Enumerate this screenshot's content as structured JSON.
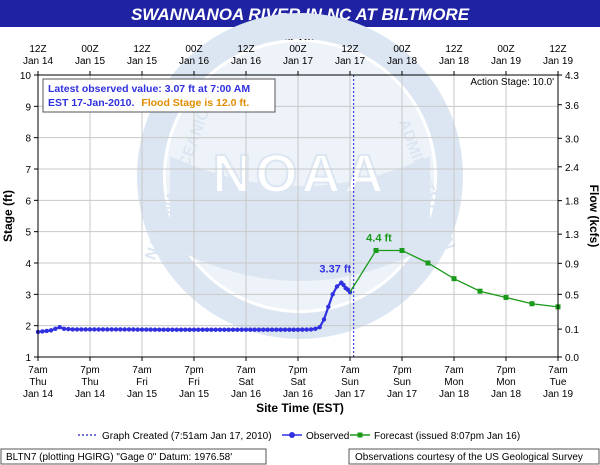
{
  "title": "SWANNANOA RIVER IN NC  AT BILTMORE",
  "top_axis": {
    "title": "Universal Time (UTC)",
    "ticks": [
      {
        "t": 0,
        "l1": "12Z",
        "l2": "Jan 14"
      },
      {
        "t": 12,
        "l1": "00Z",
        "l2": "Jan 15"
      },
      {
        "t": 24,
        "l1": "12Z",
        "l2": "Jan 15"
      },
      {
        "t": 36,
        "l1": "00Z",
        "l2": "Jan 16"
      },
      {
        "t": 48,
        "l1": "12Z",
        "l2": "Jan 16"
      },
      {
        "t": 60,
        "l1": "00Z",
        "l2": "Jan 17"
      },
      {
        "t": 72,
        "l1": "12Z",
        "l2": "Jan 17"
      },
      {
        "t": 84,
        "l1": "00Z",
        "l2": "Jan 18"
      },
      {
        "t": 96,
        "l1": "12Z",
        "l2": "Jan 18"
      },
      {
        "t": 108,
        "l1": "00Z",
        "l2": "Jan 19"
      },
      {
        "t": 120,
        "l1": "12Z",
        "l2": "Jan 19"
      }
    ]
  },
  "bottom_axis": {
    "title": "Site Time (EST)",
    "ticks": [
      {
        "t": 0,
        "l1": "7am",
        "l2": "Thu",
        "l3": "Jan 14"
      },
      {
        "t": 12,
        "l1": "7pm",
        "l2": "Thu",
        "l3": "Jan 14"
      },
      {
        "t": 24,
        "l1": "7am",
        "l2": "Fri",
        "l3": "Jan 15"
      },
      {
        "t": 36,
        "l1": "7pm",
        "l2": "Fri",
        "l3": "Jan 15"
      },
      {
        "t": 48,
        "l1": "7am",
        "l2": "Sat",
        "l3": "Jan 16"
      },
      {
        "t": 60,
        "l1": "7pm",
        "l2": "Sat",
        "l3": "Jan 16"
      },
      {
        "t": 72,
        "l1": "7am",
        "l2": "Sun",
        "l3": "Jan 17"
      },
      {
        "t": 84,
        "l1": "7pm",
        "l2": "Sun",
        "l3": "Jan 17"
      },
      {
        "t": 96,
        "l1": "7am",
        "l2": "Mon",
        "l3": "Jan 18"
      },
      {
        "t": 108,
        "l1": "7pm",
        "l2": "Mon",
        "l3": "Jan 18"
      },
      {
        "t": 120,
        "l1": "7am",
        "l2": "Tue",
        "l3": "Jan 19"
      }
    ]
  },
  "left_axis": {
    "title": "Stage (ft)",
    "min": 1,
    "max": 10,
    "ticks": [
      "1",
      "2",
      "3",
      "4",
      "5",
      "6",
      "7",
      "8",
      "9",
      "10"
    ]
  },
  "right_axis": {
    "title": "Flow (kcfs)",
    "ticks": [
      {
        "stage": 1,
        "label": "0.0"
      },
      {
        "stage": 1.89,
        "label": "0.1"
      },
      {
        "stage": 3.0,
        "label": "0.5"
      },
      {
        "stage": 3.99,
        "label": "0.9"
      },
      {
        "stage": 4.92,
        "label": "1.3"
      },
      {
        "stage": 5.99,
        "label": "1.8"
      },
      {
        "stage": 7.07,
        "label": "2.4"
      },
      {
        "stage": 7.98,
        "label": "3.0"
      },
      {
        "stage": 9.05,
        "label": "3.6"
      },
      {
        "stage": 10,
        "label": "4.3"
      }
    ]
  },
  "info_box": {
    "line1": "Latest observed value: 3.07 ft at 7:00 AM",
    "line2a": "EST 17-Jan-2010.",
    "line2b": "Flood Stage is 12.0 ft."
  },
  "action_stage": "Action Stage: 10.0'",
  "annotations": {
    "observed_peak": "3.37 ft",
    "forecast_peak": "4.4 ft"
  },
  "legend": {
    "created": "Graph Created (7:51am Jan 17, 2010)",
    "observed": "Observed",
    "forecast": "Forecast (issued 8:07pm Jan 16)"
  },
  "footer": {
    "left": "BLTN7 (plotting HGIRG)  \"Gage 0\" Datum: 1976.58'",
    "right": "Observations courtesy of the  US Geological Survey"
  },
  "watermark": {
    "text": "NOAA",
    "ring_left": "NATIONAL OCEANIC",
    "ring_right": "ADMINISTRATION"
  },
  "colors": {
    "title_bg": "#1f22a3",
    "title_fg": "#ffffff",
    "observed": "#3030e0",
    "forecast": "#1a9a1a",
    "flood_stage_text": "#e08c00",
    "graph_created_line": "#2020c0",
    "grid": "#c8c8c8",
    "watermark": "#dce6f2"
  },
  "chart_data": {
    "type": "line",
    "title": "SWANNANOA RIVER IN NC  AT BILTMORE",
    "xlabel": "Site Time (EST)",
    "xlabel_top": "Universal Time (UTC)",
    "ylabel": "Stage (ft)",
    "ylabel_right": "Flow (kcfs)",
    "ylim": [
      1,
      10
    ],
    "x_unit": "hours after 7am EST Thu Jan 14",
    "xlim": [
      0,
      120
    ],
    "graph_created_x": 72.85,
    "grid": true,
    "legend_placement": "bottom",
    "series": [
      {
        "name": "Observed",
        "x": [
          0,
          3,
          5,
          6,
          8,
          10,
          14,
          20,
          30,
          40,
          50,
          60,
          63,
          64,
          65,
          66,
          67,
          68,
          69,
          70,
          70.5,
          71,
          71.5,
          72
        ],
        "values": [
          1.8,
          1.85,
          1.95,
          1.9,
          1.88,
          1.88,
          1.88,
          1.88,
          1.87,
          1.87,
          1.87,
          1.87,
          1.88,
          1.9,
          1.95,
          2.2,
          2.6,
          3.0,
          3.25,
          3.37,
          3.3,
          3.2,
          3.15,
          3.07
        ]
      },
      {
        "name": "Forecast",
        "x": [
          72,
          78,
          84,
          90,
          96,
          102,
          108,
          114,
          120
        ],
        "values": [
          3.07,
          4.4,
          4.4,
          4.0,
          3.5,
          3.1,
          2.9,
          2.7,
          2.6
        ]
      }
    ]
  }
}
